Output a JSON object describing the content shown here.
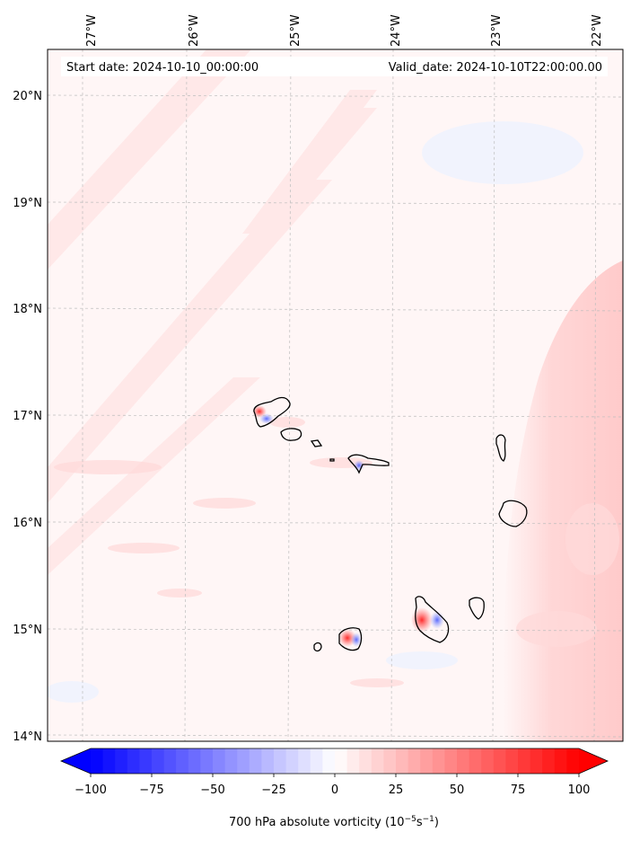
{
  "map": {
    "start_date": "Start date: 2024-10-10_00:00:00",
    "valid_date": "Valid_date: 2024-10-10T22:00:00.00",
    "longitude_labels": [
      "27°W",
      "26°W",
      "25°W",
      "24°W",
      "23°W",
      "22°W"
    ],
    "latitude_labels": [
      "20°N",
      "19°N",
      "18°N",
      "17°N",
      "16°N",
      "15°N",
      "14°N"
    ],
    "gridlines": true,
    "field": "700 hPa absolute vorticity"
  },
  "colorbar": {
    "label_main": "700 hPa absolute vorticity (10",
    "label_exp1": "−5",
    "label_mid": "s",
    "label_exp2": "−1",
    "label_end": ")",
    "tick_labels": [
      "−100",
      "−75",
      "−50",
      "−25",
      "0",
      "25",
      "50",
      "75",
      "100"
    ],
    "range": [
      -100,
      100
    ],
    "extend": "both",
    "colors": {
      "min": "#0000ff",
      "mid": "#ffffff",
      "max": "#ff0000"
    }
  }
}
